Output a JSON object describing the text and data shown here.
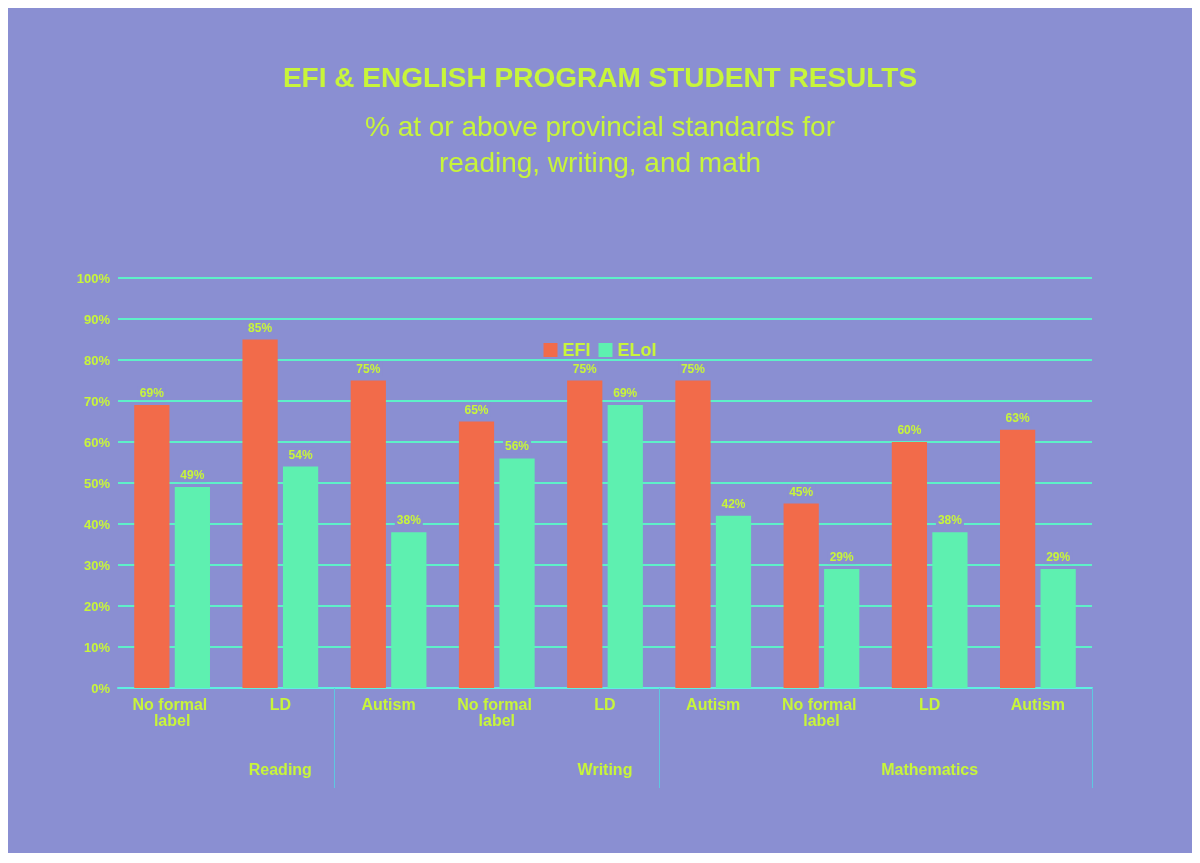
{
  "chart_data": {
    "type": "bar",
    "title": "EFI & ENGLISH PROGRAM STUDENT RESULTS",
    "subtitle": "% at or above provincial standards for\nreading, writing, and math",
    "categories": [
      "No formal label",
      "LD",
      "Autism",
      "No formal label",
      "LD",
      "Autism",
      "No formal label",
      "LD",
      "Autism"
    ],
    "annotations": [
      "Reading",
      "Writing",
      "Mathematics"
    ],
    "series": [
      {
        "name": "EFI",
        "color": "#f26b4a",
        "values": [
          69,
          85,
          75,
          65,
          75,
          75,
          45,
          60,
          63
        ],
        "value_labels": [
          "69%",
          "85%",
          "75%",
          "65%",
          "75%",
          "75%",
          "45%",
          "60%",
          "63%"
        ]
      },
      {
        "name": "ELoI",
        "color": "#5ef0b0",
        "values": [
          49,
          54,
          38,
          56,
          69,
          42,
          29,
          38,
          29
        ],
        "value_labels": [
          "49%",
          "54%",
          "38%",
          "56%",
          "69%",
          "42%",
          "29%",
          "38%",
          "29%"
        ]
      }
    ],
    "ylim": [
      0,
      100
    ],
    "yticks": [
      {
        "value": 0,
        "label": "0%"
      },
      {
        "value": 10,
        "label": "10%"
      },
      {
        "value": 20,
        "label": "20%"
      },
      {
        "value": 30,
        "label": "30%"
      },
      {
        "value": 40,
        "label": "40%"
      },
      {
        "value": 50,
        "label": "50%"
      },
      {
        "value": 60,
        "label": "60%"
      },
      {
        "value": 70,
        "label": "70%"
      },
      {
        "value": 80,
        "label": "80%"
      },
      {
        "value": 90,
        "label": "90%"
      },
      {
        "value": 100,
        "label": "100%"
      }
    ],
    "grid": "y",
    "legend": "top"
  }
}
